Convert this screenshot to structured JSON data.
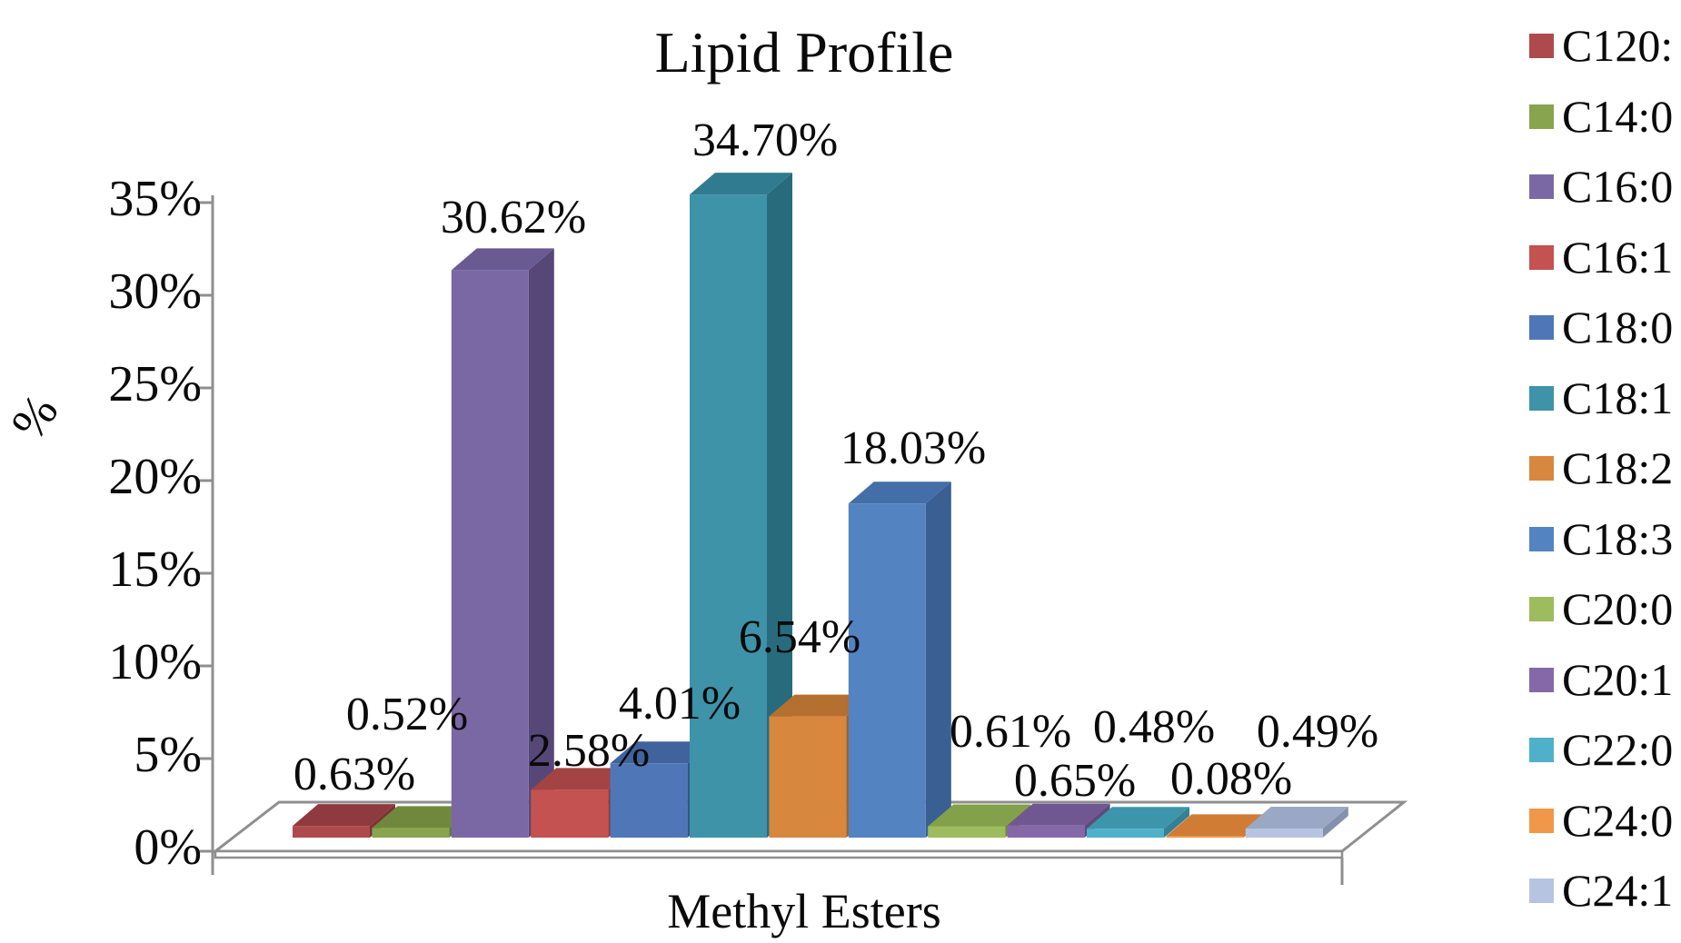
{
  "chart_data": {
    "type": "bar",
    "projection": "3d",
    "title": "Lipid Profile",
    "xlabel": "Methyl Esters",
    "ylabel": "%",
    "ylim": [
      0,
      35
    ],
    "y_tick_step": 5,
    "grid": false,
    "legend_position": "right",
    "y_tick_labels": [
      "0%",
      "5%",
      "10%",
      "15%",
      "20%",
      "25%",
      "30%",
      "35%"
    ],
    "categories": [
      "C120:",
      "C14:0",
      "C16:0",
      "C16:1",
      "C18:0",
      "C18:1",
      "C18:2",
      "C18:3",
      "C20:0",
      "C20:1",
      "C22:0",
      "C24:0",
      "C24:1"
    ],
    "values": [
      0.63,
      0.52,
      30.62,
      2.58,
      4.01,
      34.7,
      6.54,
      18.03,
      0.61,
      0.65,
      0.48,
      0.08,
      0.49
    ],
    "value_labels": [
      "0.63%",
      "0.52%",
      "30.62%",
      "2.58%",
      "4.01%",
      "34.70%",
      "6.54%",
      "18.03%",
      "0.61%",
      "0.65%",
      "0.48%",
      "0.08%",
      "0.49%"
    ],
    "bar_colors_front": [
      "#AE4A4D",
      "#89A44E",
      "#7A68A4",
      "#C45250",
      "#4F77B7",
      "#3E93A9",
      "#D8883E",
      "#5483C2",
      "#9DBC5D",
      "#8568A8",
      "#4EB1C9",
      "#F09749",
      "#B7C4E1"
    ],
    "bar_colors_top": [
      "#8E3A3E",
      "#6F883C",
      "#695A92",
      "#A44344",
      "#40639E",
      "#307B8F",
      "#B56F2E",
      "#446EA8",
      "#83A04A",
      "#705791",
      "#3D95AB",
      "#D07C35",
      "#9AA8C6"
    ],
    "bar_colors_side": [
      "#7C3336",
      "#5F7634",
      "#574778",
      "#8E3A3B",
      "#365589",
      "#286B7D",
      "#9D6028",
      "#3A5F92",
      "#718B40",
      "#5F4A7C",
      "#348195",
      "#B56B2D",
      "#8591AC"
    ],
    "axis_color": "#8f8f8f",
    "text_color": "#0a0a0a",
    "background": "#ffffff"
  }
}
